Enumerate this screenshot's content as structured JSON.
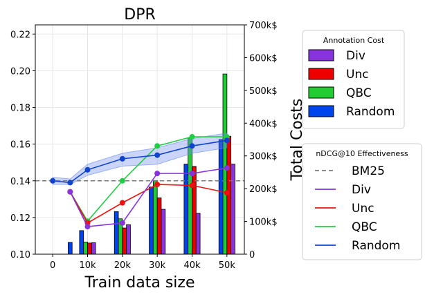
{
  "chart_data": {
    "type": "bar+line",
    "title": "DPR",
    "xlabel": "Train data size",
    "ylabel_right": "Total Costs",
    "x": [
      0,
      5,
      10,
      20,
      30,
      40,
      50
    ],
    "x_tick_labels": [
      "0",
      "10k",
      "20k",
      "30k",
      "40k",
      "50k"
    ],
    "x_tick_values": [
      0,
      10,
      20,
      30,
      40,
      50
    ],
    "xlim": [
      -5,
      55
    ],
    "ylim_left": [
      0.1,
      0.225
    ],
    "y_left_ticks": [
      "0.10",
      "0.12",
      "0.14",
      "0.16",
      "0.18",
      "0.20",
      "0.22"
    ],
    "y_left_tick_values": [
      0.1,
      0.12,
      0.14,
      0.16,
      0.18,
      0.2,
      0.22
    ],
    "ylim_right": [
      0,
      700
    ],
    "y_right_ticks": [
      "0",
      "100k$",
      "200k$",
      "300k$",
      "400k$",
      "500k$",
      "600k$",
      "700k$"
    ],
    "y_right_tick_values": [
      0,
      100,
      200,
      300,
      400,
      500,
      600,
      700
    ],
    "cost_unit": "k$",
    "bar_series": [
      {
        "name": "Random",
        "color": "#0044ee",
        "x": [
          5,
          10,
          20,
          30,
          40,
          50
        ],
        "values": [
          36,
          72,
          130,
          205,
          275,
          350
        ]
      },
      {
        "name": "QBC",
        "color": "#22cc33",
        "x": [
          10,
          20,
          30,
          40,
          50
        ],
        "values": [
          37,
          108,
          225,
          355,
          550
        ]
      },
      {
        "name": "Unc",
        "color": "#ee0000",
        "x": [
          10,
          20,
          30,
          40,
          50
        ],
        "values": [
          34,
          80,
          172,
          268,
          360
        ]
      },
      {
        "name": "Div",
        "color": "#8833dd",
        "x": [
          10,
          20,
          30,
          40,
          50
        ],
        "values": [
          35,
          90,
          137,
          125,
          275
        ]
      }
    ],
    "line_series": [
      {
        "name": "Random",
        "color": "#1144cc",
        "x": [
          0,
          5,
          10,
          20,
          30,
          40,
          50
        ],
        "values": [
          0.14,
          0.139,
          0.146,
          0.152,
          0.154,
          0.159,
          0.162
        ],
        "band_lower": [
          0.138,
          0.138,
          0.143,
          0.148,
          0.149,
          0.155,
          0.158
        ],
        "band_upper": [
          0.142,
          0.141,
          0.149,
          0.155,
          0.158,
          0.163,
          0.166
        ]
      },
      {
        "name": "QBC",
        "color": "#22cc44",
        "x": [
          5,
          10,
          20,
          30,
          40,
          50
        ],
        "values": [
          0.134,
          0.118,
          0.14,
          0.159,
          0.164,
          0.164
        ]
      },
      {
        "name": "Unc",
        "color": "#ee1111",
        "x": [
          5,
          10,
          20,
          30,
          40,
          50
        ],
        "values": [
          0.134,
          0.117,
          0.128,
          0.138,
          0.1375,
          0.1335
        ]
      },
      {
        "name": "Div",
        "color": "#8833dd",
        "x": [
          5,
          10,
          20,
          30,
          40,
          50
        ],
        "values": [
          0.134,
          0.115,
          0.117,
          0.144,
          0.144,
          0.147
        ]
      }
    ],
    "reference_line": {
      "name": "BM25",
      "value": 0.14,
      "color": "#777777"
    },
    "legend_cost": {
      "title": "Annotation Cost",
      "items": [
        "Div",
        "Unc",
        "QBC",
        "Random"
      ],
      "colors": [
        "#8833dd",
        "#ee0000",
        "#22cc33",
        "#0044ee"
      ]
    },
    "legend_effect": {
      "title": "nDCG@10 Effectiveness",
      "items": [
        "BM25",
        "Div",
        "Unc",
        "QBC",
        "Random"
      ],
      "colors": [
        "#777777",
        "#8833dd",
        "#ee1111",
        "#22cc44",
        "#1144cc"
      ]
    }
  }
}
